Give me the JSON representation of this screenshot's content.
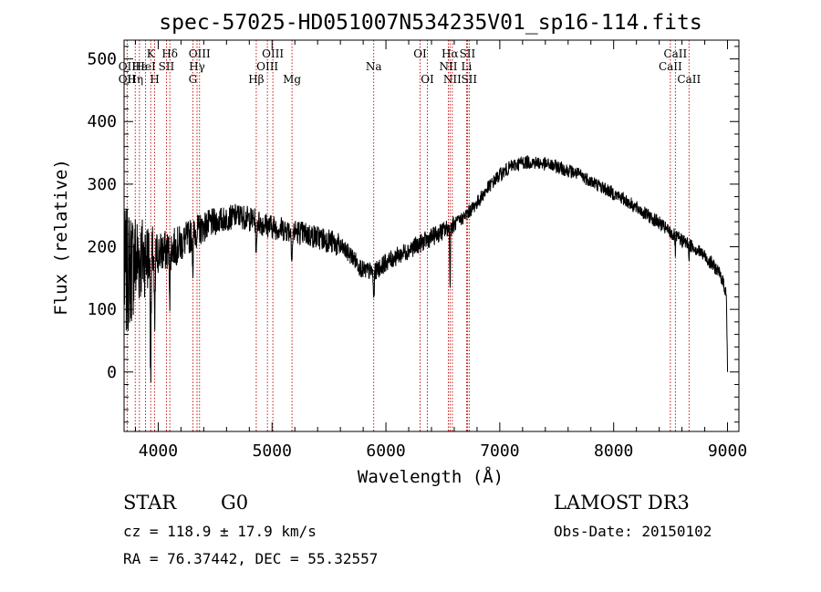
{
  "chart_data": {
    "type": "line",
    "title": "spec-57025-HD051007N534235V01_sp16-114.fits",
    "xlabel": "Wavelength (Å)",
    "ylabel": "Flux (relative)",
    "xlim": [
      3700,
      9100
    ],
    "ylim": [
      -95,
      530
    ],
    "x_ticks": [
      4000,
      5000,
      6000,
      7000,
      8000,
      9000
    ],
    "y_ticks": [
      0,
      100,
      200,
      300,
      400,
      500
    ],
    "continuum_anchors": [
      [
        3700,
        150
      ],
      [
        3800,
        180
      ],
      [
        3900,
        185
      ],
      [
        4000,
        190
      ],
      [
        4100,
        195
      ],
      [
        4200,
        205
      ],
      [
        4300,
        220
      ],
      [
        4400,
        232
      ],
      [
        4500,
        240
      ],
      [
        4600,
        245
      ],
      [
        4700,
        250
      ],
      [
        4800,
        245
      ],
      [
        4900,
        238
      ],
      [
        5000,
        232
      ],
      [
        5100,
        228
      ],
      [
        5200,
        225
      ],
      [
        5300,
        220
      ],
      [
        5400,
        215
      ],
      [
        5500,
        210
      ],
      [
        5600,
        200
      ],
      [
        5700,
        185
      ],
      [
        5800,
        162
      ],
      [
        5900,
        160
      ],
      [
        6000,
        175
      ],
      [
        6100,
        185
      ],
      [
        6200,
        195
      ],
      [
        6300,
        205
      ],
      [
        6400,
        215
      ],
      [
        6500,
        225
      ],
      [
        6600,
        235
      ],
      [
        6700,
        250
      ],
      [
        6800,
        270
      ],
      [
        6900,
        295
      ],
      [
        7000,
        315
      ],
      [
        7100,
        328
      ],
      [
        7200,
        335
      ],
      [
        7300,
        335
      ],
      [
        7400,
        332
      ],
      [
        7500,
        328
      ],
      [
        7600,
        322
      ],
      [
        7700,
        315
      ],
      [
        7800,
        305
      ],
      [
        7900,
        295
      ],
      [
        8000,
        285
      ],
      [
        8100,
        275
      ],
      [
        8200,
        262
      ],
      [
        8300,
        250
      ],
      [
        8400,
        238
      ],
      [
        8500,
        222
      ],
      [
        8600,
        210
      ],
      [
        8700,
        200
      ],
      [
        8800,
        185
      ],
      [
        8900,
        165
      ],
      [
        8950,
        150
      ],
      [
        8990,
        125
      ],
      [
        9000,
        0
      ]
    ],
    "absorption_features": [
      {
        "x": 3934,
        "depth": 170,
        "width": 6
      },
      {
        "x": 3969,
        "depth": 130,
        "width": 6
      },
      {
        "x": 4102,
        "depth": 70,
        "width": 5
      },
      {
        "x": 4305,
        "depth": 55,
        "width": 5
      },
      {
        "x": 4861,
        "depth": 60,
        "width": 5
      },
      {
        "x": 5175,
        "depth": 35,
        "width": 8
      },
      {
        "x": 5893,
        "depth": 45,
        "width": 6
      },
      {
        "x": 6563,
        "depth": 90,
        "width": 4
      },
      {
        "x": 8542,
        "depth": 25,
        "width": 4
      },
      {
        "x": 8662,
        "depth": 22,
        "width": 4
      }
    ],
    "series": [
      {
        "name": "flux",
        "color": "#000000"
      }
    ],
    "lines": [
      {
        "x": 3727,
        "label": "OII",
        "row": 1
      },
      {
        "x": 3727,
        "label": "OII",
        "row": 2
      },
      {
        "x": 3798,
        "label": "Hη",
        "row": 2
      },
      {
        "x": 3835,
        "label": "Hε",
        "row": 1
      },
      {
        "x": 3889,
        "label": "HeI",
        "row": 1
      },
      {
        "x": 3934,
        "label": "K",
        "row": 0
      },
      {
        "x": 3969,
        "label": "H",
        "row": 2
      },
      {
        "x": 4072,
        "label": "SII",
        "row": 1
      },
      {
        "x": 4102,
        "label": "Hδ",
        "row": 0
      },
      {
        "x": 4304,
        "label": "G",
        "row": 2
      },
      {
        "x": 4341,
        "label": "Hγ",
        "row": 1
      },
      {
        "x": 4363,
        "label": "OIII",
        "row": 0
      },
      {
        "x": 4861,
        "label": "Hβ",
        "row": 2
      },
      {
        "x": 4959,
        "label": "OIII",
        "row": 1
      },
      {
        "x": 5007,
        "label": "OIII",
        "row": 0
      },
      {
        "x": 5175,
        "label": "Mg",
        "row": 2
      },
      {
        "x": 5893,
        "label": "Na",
        "row": 1
      },
      {
        "x": 6300,
        "label": "OI",
        "row": 0
      },
      {
        "x": 6364,
        "label": "OI",
        "row": 2
      },
      {
        "x": 6548,
        "label": "NII",
        "row": 1
      },
      {
        "x": 6563,
        "label": "Hα",
        "row": 0
      },
      {
        "x": 6583,
        "label": "NII",
        "row": 2
      },
      {
        "x": 6708,
        "label": "Li",
        "row": 1
      },
      {
        "x": 6716,
        "label": "SII",
        "row": 0
      },
      {
        "x": 6731,
        "label": "SII",
        "row": 2
      },
      {
        "x": 8498,
        "label": "CaII",
        "row": 1
      },
      {
        "x": 8542,
        "label": "CaII",
        "row": 0
      },
      {
        "x": 8662,
        "label": "CaII",
        "row": 2
      }
    ]
  },
  "info": {
    "object_class": "STAR",
    "subclass": "G0",
    "survey": "LAMOST DR3",
    "cz": "cz = 118.9 ± 17.9 km/s",
    "obs_date": "Obs-Date: 20150102",
    "coords": "RA =  76.37442, DEC =  55.32557"
  }
}
